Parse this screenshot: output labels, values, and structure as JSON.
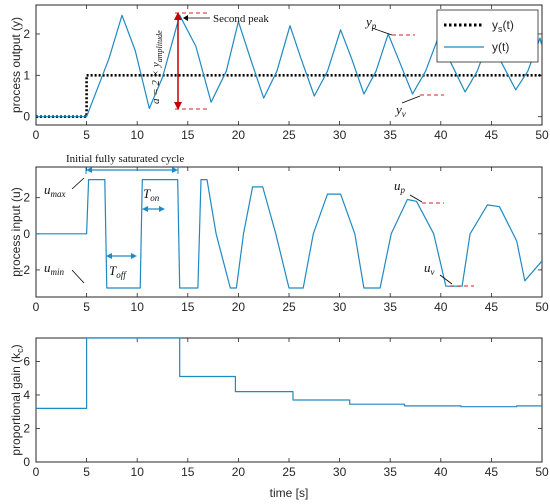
{
  "chart_data": [
    {
      "type": "line",
      "ylabel": "process output (y)",
      "xlim": [
        0,
        50
      ],
      "ylim": [
        -0.2,
        2.7
      ],
      "xticks": [
        0,
        5,
        10,
        15,
        20,
        25,
        30,
        35,
        40,
        45,
        50
      ],
      "yticks": [
        0,
        1,
        2
      ],
      "legend": {
        "placement": "top-right",
        "entries": [
          "y_s(t)",
          "y(t)"
        ]
      },
      "series": [
        {
          "name": "y_s(t)",
          "style": "dotted",
          "color": "#000000",
          "x": [
            0,
            5,
            5,
            50
          ],
          "y": [
            0,
            0,
            1,
            1
          ]
        },
        {
          "name": "y(t)",
          "style": "solid",
          "color": "#1f8ac2",
          "x": [
            0,
            5,
            7.2,
            8.5,
            9.8,
            11.2,
            12.5,
            14.2,
            15.8,
            17.3,
            18.8,
            20.0,
            21.2,
            22.5,
            23.8,
            25.1,
            26.2,
            27.5,
            28.8,
            30.1,
            31.2,
            32.4,
            33.6,
            34.8,
            35.8,
            37.2,
            38.5,
            39.8,
            40.8,
            42.4,
            43.6,
            44.8,
            45.8,
            47.4,
            48.6,
            49.8,
            50
          ],
          "y": [
            0,
            0,
            1.4,
            2.45,
            1.6,
            0.2,
            0.95,
            2.45,
            1.7,
            0.35,
            1.1,
            2.3,
            1.4,
            0.45,
            1.1,
            2.2,
            1.4,
            0.5,
            1.1,
            2.1,
            1.4,
            0.55,
            1.1,
            2.0,
            1.4,
            0.55,
            1.1,
            1.95,
            1.4,
            0.6,
            1.1,
            1.9,
            1.4,
            0.65,
            1.1,
            1.9,
            1.7
          ]
        }
      ],
      "annotations": {
        "second_peak": "Second peak",
        "amplitude": "a = 2 × y",
        "amplitude_sub": "amplitude",
        "yp": "y",
        "yp_sub": "p",
        "yv": "y",
        "yv_sub": "v"
      }
    },
    {
      "type": "line",
      "ylabel": "process input (u)",
      "xlim": [
        0,
        50
      ],
      "ylim": [
        -3.5,
        3.7
      ],
      "xticks": [
        0,
        5,
        10,
        15,
        20,
        25,
        30,
        35,
        40,
        45,
        50
      ],
      "yticks": [
        -2,
        0,
        2
      ],
      "series": [
        {
          "name": "u(t)",
          "style": "solid",
          "color": "#1f8ac2",
          "x": [
            0,
            5,
            5.2,
            6.8,
            7.0,
            10.3,
            10.5,
            14.0,
            14.2,
            16.0,
            16.3,
            16.9,
            17.8,
            19.2,
            19.8,
            20.5,
            21.4,
            22.4,
            23.7,
            25.0,
            26.4,
            27.4,
            28.8,
            30.1,
            31.5,
            32.4,
            34.0,
            35.1,
            36.7,
            37.6,
            39.3,
            40.5,
            42.1,
            42.9,
            44.6,
            45.8,
            47.5,
            48.3,
            50
          ],
          "y": [
            0,
            0,
            3,
            3,
            -3,
            -3,
            3,
            3,
            -3,
            -3,
            3,
            3,
            0,
            -3,
            -3,
            0,
            2.6,
            2.6,
            0,
            -3,
            -3,
            0,
            2.2,
            2.2,
            0,
            -3,
            -3,
            0,
            1.9,
            1.8,
            0,
            -2.9,
            -2.9,
            0,
            1.6,
            1.5,
            -0.4,
            -2.6,
            -1.5
          ]
        }
      ],
      "annotations": {
        "title": "Initial fully saturated cycle",
        "umax": "u",
        "umax_sub": "max",
        "umin": "u",
        "umin_sub": "min",
        "toff": "T",
        "toff_sub": "off",
        "ton": "T",
        "ton_sub": "on",
        "up": "u",
        "up_sub": "p",
        "uv": "u",
        "uv_sub": "v"
      }
    },
    {
      "type": "line",
      "ylabel": "proportional gain (k",
      "ylabel_sub": "c",
      "ylabel_end": ")",
      "xlabel": "time [s]",
      "xlim": [
        0,
        50
      ],
      "ylim": [
        0,
        7.4
      ],
      "xticks": [
        0,
        5,
        10,
        15,
        20,
        25,
        30,
        35,
        40,
        45,
        50
      ],
      "yticks": [
        0,
        2,
        4,
        6
      ],
      "series": [
        {
          "name": "k_c(t)",
          "style": "solid",
          "color": "#1f8ac2",
          "x": [
            0,
            5,
            5,
            14.2,
            14.2,
            19.7,
            19.7,
            25.4,
            25.4,
            31.0,
            31.0,
            36.4,
            36.4,
            42.0,
            42.0,
            47.5,
            47.5,
            50
          ],
          "y": [
            3.2,
            3.2,
            7.4,
            7.4,
            5.1,
            5.1,
            4.2,
            4.2,
            3.7,
            3.7,
            3.45,
            3.45,
            3.35,
            3.35,
            3.3,
            3.3,
            3.35,
            3.35
          ]
        }
      ]
    }
  ]
}
